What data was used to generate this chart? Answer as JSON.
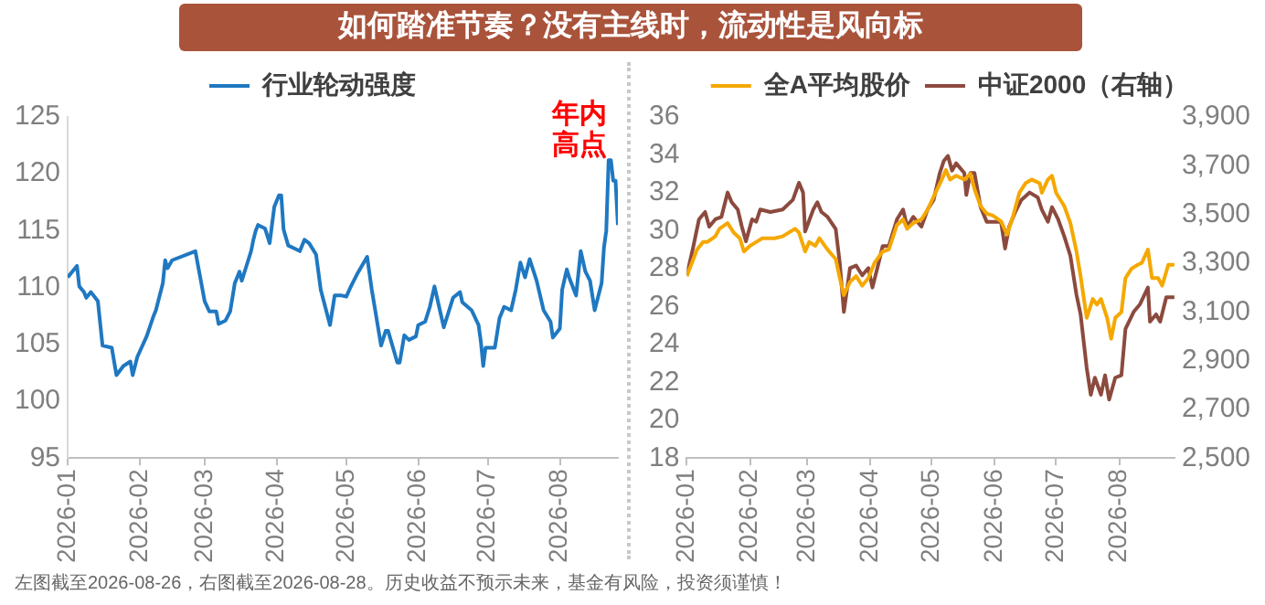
{
  "chart_data": [
    {
      "type": "line",
      "title": "如何踏准节奏？没有主线时，流动性是风向标",
      "legend": "top",
      "xlim": [
        "2026-01-01",
        "2026-08-26"
      ],
      "xticks": [
        {
          "value": "2026-01-01",
          "label": "2026-01"
        },
        {
          "value": "2026-02-01",
          "label": "2026-02"
        },
        {
          "value": "2026-03-01",
          "label": "2026-03"
        },
        {
          "value": "2026-04-01",
          "label": "2026-04"
        },
        {
          "value": "2026-05-01",
          "label": "2026-05"
        },
        {
          "value": "2026-06-01",
          "label": "2026-06"
        },
        {
          "value": "2026-07-01",
          "label": "2026-07"
        },
        {
          "value": "2026-08-01",
          "label": "2026-08"
        }
      ],
      "ylim": [
        95,
        125
      ],
      "yticks": [
        95,
        100,
        105,
        110,
        115,
        120,
        125
      ],
      "annotations": [
        {
          "text": "年内高点",
          "x": "2026-08-22",
          "y": 121.2
        },
        "左图截至2026-08-26，右图截至2026-08-28。历史收益不预示未来，基金有风险，投资须谨慎！"
      ],
      "series": [
        {
          "name": "行业轮动强度",
          "color": "#1f78c1",
          "x": [
            "2026-01-01",
            "2026-01-05",
            "2026-01-06",
            "2026-01-08",
            "2026-01-09",
            "2026-01-11",
            "2026-01-14",
            "2026-01-16",
            "2026-01-20",
            "2026-01-22",
            "2026-01-25",
            "2026-01-28",
            "2026-01-29",
            "2026-01-31",
            "2026-02-04",
            "2026-02-07",
            "2026-02-08",
            "2026-02-11",
            "2026-02-12",
            "2026-02-13",
            "2026-02-15",
            "2026-02-25",
            "2026-03-01",
            "2026-03-03",
            "2026-03-06",
            "2026-03-07",
            "2026-03-10",
            "2026-03-12",
            "2026-03-14",
            "2026-03-16",
            "2026-03-17",
            "2026-03-19",
            "2026-03-21",
            "2026-03-22",
            "2026-03-23",
            "2026-03-24",
            "2026-03-27",
            "2026-03-29",
            "2026-03-31",
            "2026-04-02",
            "2026-04-03",
            "2026-04-04",
            "2026-04-06",
            "2026-04-09",
            "2026-04-11",
            "2026-04-13",
            "2026-04-15",
            "2026-04-18",
            "2026-04-20",
            "2026-04-24",
            "2026-04-26",
            "2026-04-29",
            "2026-05-01",
            "2026-05-03",
            "2026-05-06",
            "2026-05-10",
            "2026-05-12",
            "2026-05-16",
            "2026-05-18",
            "2026-05-19",
            "2026-05-23",
            "2026-05-24",
            "2026-05-26",
            "2026-05-28",
            "2026-05-31",
            "2026-06-01",
            "2026-06-04",
            "2026-06-06",
            "2026-06-08",
            "2026-06-10",
            "2026-06-12",
            "2026-06-14",
            "2026-06-16",
            "2026-06-19",
            "2026-06-20",
            "2026-06-24",
            "2026-06-27",
            "2026-06-28",
            "2026-06-29",
            "2026-06-30",
            "2026-07-04",
            "2026-07-06",
            "2026-07-08",
            "2026-07-11",
            "2026-07-13",
            "2026-07-15",
            "2026-07-17",
            "2026-07-19",
            "2026-07-22",
            "2026-07-25",
            "2026-07-28",
            "2026-07-29",
            "2026-08-01",
            "2026-08-02",
            "2026-08-04",
            "2026-08-05",
            "2026-08-08",
            "2026-08-10",
            "2026-08-12",
            "2026-08-14",
            "2026-08-16",
            "2026-08-19",
            "2026-08-20",
            "2026-08-21",
            "2026-08-22",
            "2026-08-23",
            "2026-08-24",
            "2026-08-25",
            "2026-08-26"
          ],
          "values": [
            110.9,
            111.9,
            110.1,
            109.6,
            109.1,
            109.6,
            108.8,
            104.9,
            104.7,
            102.3,
            103.1,
            103.5,
            102.3,
            103.9,
            105.7,
            107.5,
            108.0,
            110.4,
            112.4,
            111.7,
            112.4,
            113.2,
            108.8,
            107.9,
            107.9,
            106.8,
            107.1,
            107.9,
            110.4,
            111.4,
            110.6,
            111.9,
            113.2,
            114.2,
            115.0,
            115.5,
            115.2,
            113.9,
            117.1,
            118.1,
            118.1,
            115.1,
            113.7,
            113.4,
            113.2,
            114.2,
            113.9,
            112.9,
            109.8,
            106.7,
            109.3,
            109.3,
            109.2,
            110.1,
            111.3,
            112.7,
            109.8,
            104.9,
            106.2,
            106.2,
            103.4,
            103.4,
            105.8,
            105.4,
            105.7,
            106.7,
            107.0,
            108.3,
            110.1,
            108.3,
            106.5,
            107.8,
            109.1,
            109.6,
            108.7,
            108.0,
            106.7,
            105.2,
            103.1,
            104.7,
            104.7,
            107.3,
            108.3,
            108.0,
            109.8,
            112.2,
            110.9,
            112.5,
            110.6,
            108.0,
            107.0,
            105.6,
            106.4,
            109.8,
            111.6,
            110.9,
            109.3,
            113.2,
            111.4,
            110.6,
            108.0,
            110.4,
            113.5,
            115.0,
            121.2,
            121.2,
            119.4,
            119.4,
            115.5
          ]
        }
      ]
    },
    {
      "type": "line",
      "legend": "top",
      "xlim": [
        "2026-01-01",
        "2026-08-28"
      ],
      "xticks": [
        {
          "value": "2026-01-01",
          "label": "2026-01"
        },
        {
          "value": "2026-02-01",
          "label": "2026-02"
        },
        {
          "value": "2026-03-01",
          "label": "2026-03"
        },
        {
          "value": "2026-04-01",
          "label": "2026-04"
        },
        {
          "value": "2026-05-01",
          "label": "2026-05"
        },
        {
          "value": "2026-06-01",
          "label": "2026-06"
        },
        {
          "value": "2026-07-01",
          "label": "2026-07"
        },
        {
          "value": "2026-08-01",
          "label": "2026-08"
        }
      ],
      "ylim": [
        18,
        36
      ],
      "yticks": [
        18,
        20,
        22,
        24,
        26,
        28,
        30,
        32,
        34,
        36
      ],
      "y2lim": [
        2500,
        3900
      ],
      "y2ticks": [
        {
          "value": 2500,
          "label": "2,500"
        },
        {
          "value": 2700,
          "label": "2,700"
        },
        {
          "value": 2900,
          "label": "2,900"
        },
        {
          "value": 3100,
          "label": "3,100"
        },
        {
          "value": 3300,
          "label": "3,300"
        },
        {
          "value": 3500,
          "label": "3,500"
        },
        {
          "value": 3700,
          "label": "3,700"
        },
        {
          "value": 3900,
          "label": "3,900"
        }
      ],
      "series": [
        {
          "name": "全A平均股价",
          "color": "#f5a800",
          "x": [
            "2026-01-01",
            "2026-01-06",
            "2026-01-09",
            "2026-01-11",
            "2026-01-15",
            "2026-01-17",
            "2026-01-21",
            "2026-01-24",
            "2026-01-27",
            "2026-01-29",
            "2026-02-01",
            "2026-02-04",
            "2026-02-07",
            "2026-02-13",
            "2026-02-17",
            "2026-02-23",
            "2026-02-25",
            "2026-02-28",
            "2026-03-02",
            "2026-03-05",
            "2026-03-07",
            "2026-03-11",
            "2026-03-15",
            "2026-03-17",
            "2026-03-19",
            "2026-03-22",
            "2026-03-25",
            "2026-03-28",
            "2026-03-31",
            "2026-04-03",
            "2026-04-07",
            "2026-04-10",
            "2026-04-14",
            "2026-04-17",
            "2026-04-19",
            "2026-04-22",
            "2026-04-26",
            "2026-04-29",
            "2026-05-02",
            "2026-05-06",
            "2026-05-08",
            "2026-05-10",
            "2026-05-13",
            "2026-05-17",
            "2026-05-20",
            "2026-05-22",
            "2026-05-25",
            "2026-05-28",
            "2026-05-31",
            "2026-06-04",
            "2026-06-07",
            "2026-06-10",
            "2026-06-13",
            "2026-06-16",
            "2026-06-19",
            "2026-06-23",
            "2026-06-24",
            "2026-06-27",
            "2026-06-29",
            "2026-07-01",
            "2026-07-05",
            "2026-07-08",
            "2026-07-11",
            "2026-07-13",
            "2026-07-16",
            "2026-07-19",
            "2026-07-21",
            "2026-07-23",
            "2026-07-26",
            "2026-07-28",
            "2026-07-30",
            "2026-08-02",
            "2026-08-04",
            "2026-08-07",
            "2026-08-10",
            "2026-08-12",
            "2026-08-15",
            "2026-08-17",
            "2026-08-20",
            "2026-08-22",
            "2026-08-25",
            "2026-08-28"
          ],
          "values": [
            27.6,
            29.0,
            29.4,
            29.4,
            29.7,
            30.1,
            30.4,
            29.9,
            29.6,
            28.9,
            29.2,
            29.4,
            29.6,
            29.6,
            29.7,
            30.1,
            29.9,
            28.9,
            29.4,
            29.2,
            29.6,
            29.0,
            28.5,
            27.5,
            26.6,
            27.3,
            27.6,
            27.1,
            27.5,
            28.3,
            28.9,
            29.0,
            30.3,
            30.6,
            30.1,
            30.4,
            30.6,
            31.1,
            31.8,
            32.7,
            33.2,
            32.7,
            32.9,
            32.7,
            33.0,
            32.2,
            31.3,
            30.9,
            30.8,
            30.5,
            29.8,
            30.8,
            32.0,
            32.5,
            32.7,
            32.5,
            32.0,
            32.7,
            32.9,
            32.0,
            31.3,
            30.4,
            28.9,
            27.6,
            25.4,
            26.4,
            26.1,
            26.4,
            25.4,
            24.3,
            25.4,
            25.7,
            27.5,
            28.0,
            28.2,
            28.3,
            29.0,
            27.5,
            27.5,
            27.1,
            28.2,
            28.2
          ]
        },
        {
          "name": "中证2000（右轴）",
          "color": "#8c4a3e",
          "axis": "y2",
          "x": [
            "2026-01-01",
            "2026-01-04",
            "2026-01-07",
            "2026-01-10",
            "2026-01-12",
            "2026-01-15",
            "2026-01-18",
            "2026-01-21",
            "2026-01-23",
            "2026-01-26",
            "2026-01-28",
            "2026-01-30",
            "2026-02-02",
            "2026-02-04",
            "2026-02-06",
            "2026-02-11",
            "2026-02-17",
            "2026-02-22",
            "2026-02-25",
            "2026-02-27",
            "2026-02-28",
            "2026-03-04",
            "2026-03-06",
            "2026-03-08",
            "2026-03-11",
            "2026-03-15",
            "2026-03-17",
            "2026-03-19",
            "2026-03-22",
            "2026-03-25",
            "2026-03-28",
            "2026-03-31",
            "2026-04-02",
            "2026-04-05",
            "2026-04-07",
            "2026-04-10",
            "2026-04-14",
            "2026-04-17",
            "2026-04-19",
            "2026-04-22",
            "2026-04-26",
            "2026-04-29",
            "2026-05-02",
            "2026-05-05",
            "2026-05-07",
            "2026-05-09",
            "2026-05-11",
            "2026-05-13",
            "2026-05-17",
            "2026-05-18",
            "2026-05-20",
            "2026-05-22",
            "2026-05-25",
            "2026-05-28",
            "2026-05-31",
            "2026-06-04",
            "2026-06-06",
            "2026-06-08",
            "2026-06-11",
            "2026-06-14",
            "2026-06-18",
            "2026-06-22",
            "2026-06-24",
            "2026-06-27",
            "2026-06-29",
            "2026-07-02",
            "2026-07-05",
            "2026-07-08",
            "2026-07-11",
            "2026-07-13",
            "2026-07-16",
            "2026-07-18",
            "2026-07-20",
            "2026-07-23",
            "2026-07-25",
            "2026-07-27",
            "2026-07-30",
            "2026-08-02",
            "2026-08-04",
            "2026-08-08",
            "2026-08-11",
            "2026-08-15",
            "2026-08-16",
            "2026-08-19",
            "2026-08-21",
            "2026-08-24",
            "2026-08-28"
          ],
          "values": [
            3250,
            3360,
            3480,
            3510,
            3450,
            3480,
            3490,
            3590,
            3550,
            3520,
            3450,
            3390,
            3480,
            3470,
            3520,
            3510,
            3520,
            3560,
            3630,
            3590,
            3430,
            3520,
            3550,
            3510,
            3490,
            3440,
            3300,
            3100,
            3280,
            3290,
            3250,
            3280,
            3200,
            3300,
            3370,
            3370,
            3480,
            3520,
            3450,
            3490,
            3450,
            3520,
            3560,
            3670,
            3720,
            3740,
            3680,
            3710,
            3670,
            3580,
            3670,
            3670,
            3530,
            3470,
            3470,
            3470,
            3360,
            3450,
            3510,
            3560,
            3590,
            3570,
            3520,
            3470,
            3530,
            3480,
            3410,
            3330,
            3170,
            3090,
            2870,
            2760,
            2830,
            2760,
            2840,
            2740,
            2830,
            2840,
            3030,
            3100,
            3130,
            3200,
            3060,
            3090,
            3060,
            3160,
            3160
          ]
        }
      ]
    }
  ]
}
